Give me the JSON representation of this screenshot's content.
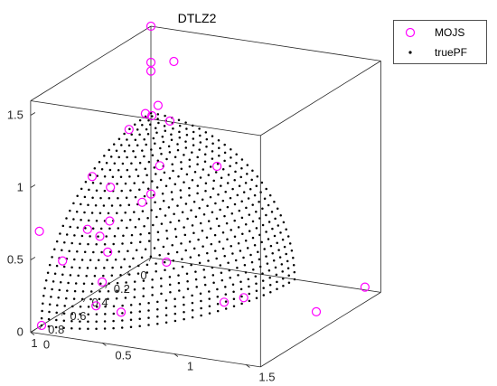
{
  "chart_data": {
    "type": "scatter",
    "projection": "3d",
    "title": "DTLZ2",
    "xlabel": "",
    "ylabel": "",
    "zlabel": "",
    "xlim": [
      0,
      1.1
    ],
    "ylim": [
      0,
      1.6
    ],
    "zlim": [
      0,
      1.6
    ],
    "x_ticks": [
      0,
      0.2,
      0.4,
      0.6,
      0.8,
      1
    ],
    "y_ticks": [
      0,
      0.5,
      1,
      1.5
    ],
    "z_ticks": [
      0,
      0.5,
      1,
      1.5
    ],
    "x_tick_labels": [
      "0",
      "0.2",
      "0.4",
      "0.6",
      "0.8",
      "1"
    ],
    "y_tick_labels": [
      "0",
      "0.5",
      "1",
      "1.5"
    ],
    "z_tick_labels": [
      "0",
      "0.5",
      "1",
      "1.5"
    ],
    "grid": false,
    "box": true,
    "legend_position": "top-right",
    "colors": {
      "MOJS": "#ff00ff",
      "truePF": "#000000"
    },
    "series": [
      {
        "name": "MOJS",
        "marker": "circle-open",
        "points": [
          [
            0.0,
            0.0,
            1.6
          ],
          [
            0.0,
            0.0,
            1.35
          ],
          [
            0.0,
            0.0,
            1.29
          ],
          [
            0.05,
            0.0,
            1.02
          ],
          [
            0.0,
            0.16,
            1.38
          ],
          [
            0.2,
            0.0,
            0.98
          ],
          [
            0.03,
            0.03,
            1.0
          ],
          [
            0.0,
            0.05,
            1.06
          ],
          [
            0.01,
            0.14,
            0.97
          ],
          [
            0.0,
            0.46,
            0.7
          ],
          [
            0.0,
            0.0,
            0.44
          ],
          [
            0.08,
            0.0,
            0.42
          ],
          [
            0.3,
            0.29,
            0.82
          ],
          [
            0.55,
            0.01,
            0.82
          ],
          [
            0.79,
            0.16,
            0.59
          ],
          [
            0.37,
            0.0,
            0.66
          ],
          [
            0.6,
            0.17,
            0.56
          ],
          [
            0.73,
            0.2,
            0.52
          ],
          [
            0.75,
            0.27,
            0.43
          ],
          [
            0.9,
            0.07,
            0.41
          ],
          [
            0.84,
            0.3,
            0.27
          ],
          [
            0.91,
            0.31,
            0.14
          ],
          [
            0.89,
            0.47,
            0.11
          ],
          [
            1.02,
            0.0,
            0.66
          ],
          [
            0.54,
            0.52,
            0.3
          ],
          [
            0.36,
            0.92,
            0.03
          ],
          [
            0.5,
            0.89,
            0.06
          ],
          [
            0.38,
            1.44,
            0.02
          ],
          [
            1.0,
            0.0,
            0.0
          ],
          [
            0.0,
            1.49,
            0.02
          ]
        ]
      },
      {
        "name": "truePF",
        "marker": "dot",
        "surface": "x^2 + y^2 + z^2 = 1, x,y,z >= 0",
        "grid_size": 32
      }
    ]
  }
}
